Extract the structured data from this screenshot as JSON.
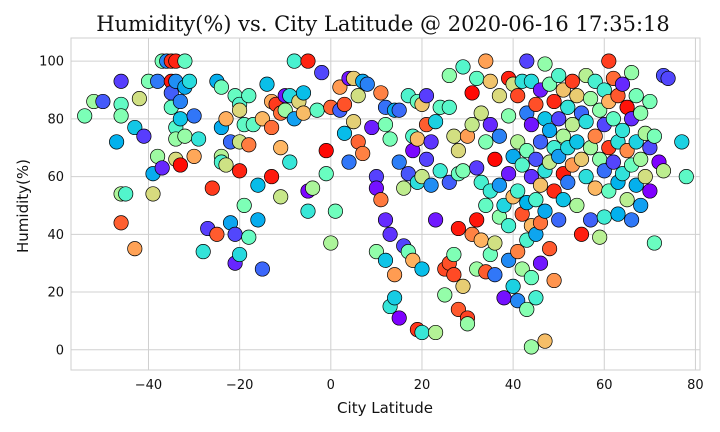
{
  "chart_data": {
    "type": "scatter",
    "title": "Humidity(%) vs. City Latitude @ 2020-06-16 17:35:18",
    "xlabel": "City Latitude",
    "ylabel": "Humidity(%)",
    "xlim": [
      -57,
      81
    ],
    "ylim": [
      -7,
      108
    ],
    "xticks": [
      -40,
      -20,
      0,
      20,
      40,
      60,
      80
    ],
    "yticks": [
      0,
      20,
      40,
      60,
      80,
      100
    ],
    "grid": true,
    "colormap": "rainbow",
    "marker_edge_color": "#000000",
    "points": [
      [
        -54,
        81
      ],
      [
        -52,
        86
      ],
      [
        -50,
        86
      ],
      [
        -47,
        72
      ],
      [
        -46,
        85
      ],
      [
        -46,
        81
      ],
      [
        -46,
        93
      ],
      [
        -46,
        44
      ],
      [
        -46,
        54
      ],
      [
        -45,
        54
      ],
      [
        -43,
        77
      ],
      [
        -43,
        35
      ],
      [
        -42,
        87
      ],
      [
        -41,
        74
      ],
      [
        -40,
        93
      ],
      [
        -39,
        61
      ],
      [
        -39,
        54
      ],
      [
        -38,
        93
      ],
      [
        -38,
        67
      ],
      [
        -37,
        100
      ],
      [
        -36,
        100
      ],
      [
        -37,
        63
      ],
      [
        -35,
        100
      ],
      [
        -35,
        93
      ],
      [
        -35,
        89
      ],
      [
        -35,
        84
      ],
      [
        -34,
        100
      ],
      [
        -34,
        93
      ],
      [
        -34,
        77
      ],
      [
        -34,
        73
      ],
      [
        -34,
        66
      ],
      [
        -33,
        80
      ],
      [
        -33,
        86
      ],
      [
        -33,
        64
      ],
      [
        -32,
        100
      ],
      [
        -32,
        91
      ],
      [
        -32,
        74
      ],
      [
        -31,
        93
      ],
      [
        -30,
        81
      ],
      [
        -30,
        67
      ],
      [
        -29,
        73
      ],
      [
        -28,
        34
      ],
      [
        -27,
        42
      ],
      [
        -26,
        56
      ],
      [
        -25,
        93
      ],
      [
        -25,
        40
      ],
      [
        -24,
        91
      ],
      [
        -24,
        77
      ],
      [
        -24,
        67
      ],
      [
        -24,
        65
      ],
      [
        -23,
        80
      ],
      [
        -23,
        64
      ],
      [
        -22,
        72
      ],
      [
        -22,
        44
      ],
      [
        -21,
        88
      ],
      [
        -21,
        40
      ],
      [
        -21,
        30
      ],
      [
        -20,
        85
      ],
      [
        -20,
        83
      ],
      [
        -20,
        72
      ],
      [
        -20,
        62
      ],
      [
        -20,
        33
      ],
      [
        -19,
        78
      ],
      [
        -19,
        50
      ],
      [
        -18,
        88
      ],
      [
        -18,
        71
      ],
      [
        -18,
        39
      ],
      [
        -17,
        78
      ],
      [
        -16,
        57
      ],
      [
        -16,
        45
      ],
      [
        -15,
        80
      ],
      [
        -15,
        28
      ],
      [
        -14,
        92
      ],
      [
        -13,
        86
      ],
      [
        -13,
        77
      ],
      [
        -13,
        60
      ],
      [
        -12,
        85
      ],
      [
        -11,
        82
      ],
      [
        -11,
        70
      ],
      [
        -11,
        53
      ],
      [
        -10,
        83
      ],
      [
        -10,
        88
      ],
      [
        -9,
        88
      ],
      [
        -9,
        65
      ],
      [
        -8,
        80
      ],
      [
        -8,
        100
      ],
      [
        -7,
        86
      ],
      [
        -6,
        82
      ],
      [
        -6,
        89
      ],
      [
        -5,
        100
      ],
      [
        -5,
        55
      ],
      [
        -5,
        48
      ],
      [
        -4,
        56
      ],
      [
        -3,
        83
      ],
      [
        -2,
        96
      ],
      [
        -1,
        69
      ],
      [
        -1,
        61
      ],
      [
        0,
        84
      ],
      [
        0,
        37
      ],
      [
        1,
        48
      ],
      [
        2,
        83
      ],
      [
        2,
        91
      ],
      [
        3,
        85
      ],
      [
        3,
        75
      ],
      [
        4,
        94
      ],
      [
        4,
        65
      ],
      [
        5,
        94
      ],
      [
        5,
        79
      ],
      [
        6,
        88
      ],
      [
        6,
        72
      ],
      [
        7,
        93
      ],
      [
        7,
        68
      ],
      [
        8,
        92
      ],
      [
        9,
        77
      ],
      [
        10,
        60
      ],
      [
        10,
        56
      ],
      [
        10,
        34
      ],
      [
        11,
        89
      ],
      [
        11,
        52
      ],
      [
        12,
        84
      ],
      [
        12,
        78
      ],
      [
        12,
        45
      ],
      [
        12,
        31
      ],
      [
        13,
        73
      ],
      [
        13,
        40
      ],
      [
        13,
        15
      ],
      [
        14,
        83
      ],
      [
        14,
        18
      ],
      [
        14,
        26
      ],
      [
        15,
        83
      ],
      [
        15,
        65
      ],
      [
        15,
        11
      ],
      [
        16,
        56
      ],
      [
        16,
        36
      ],
      [
        17,
        88
      ],
      [
        17,
        61
      ],
      [
        17,
        34
      ],
      [
        18,
        74
      ],
      [
        18,
        69
      ],
      [
        18,
        31
      ],
      [
        19,
        86
      ],
      [
        19,
        73
      ],
      [
        19,
        58
      ],
      [
        19,
        7
      ],
      [
        20,
        85
      ],
      [
        20,
        60
      ],
      [
        20,
        28
      ],
      [
        20,
        6
      ],
      [
        21,
        88
      ],
      [
        21,
        78
      ],
      [
        21,
        66
      ],
      [
        22,
        72
      ],
      [
        22,
        57
      ],
      [
        23,
        79
      ],
      [
        23,
        45
      ],
      [
        23,
        6
      ],
      [
        24,
        84
      ],
      [
        24,
        62
      ],
      [
        25,
        19
      ],
      [
        25,
        28
      ],
      [
        26,
        95
      ],
      [
        26,
        84
      ],
      [
        26,
        58
      ],
      [
        26,
        30
      ],
      [
        27,
        74
      ],
      [
        27,
        33
      ],
      [
        27,
        26
      ],
      [
        28,
        69
      ],
      [
        28,
        61
      ],
      [
        28,
        42
      ],
      [
        28,
        14
      ],
      [
        29,
        98
      ],
      [
        29,
        62
      ],
      [
        29,
        22
      ],
      [
        30,
        74
      ],
      [
        30,
        11
      ],
      [
        30,
        9
      ],
      [
        31,
        89
      ],
      [
        31,
        78
      ],
      [
        31,
        40
      ],
      [
        32,
        94
      ],
      [
        32,
        63
      ],
      [
        32,
        45
      ],
      [
        32,
        28
      ],
      [
        33,
        82
      ],
      [
        33,
        58
      ],
      [
        33,
        38
      ],
      [
        34,
        100
      ],
      [
        34,
        72
      ],
      [
        34,
        50
      ],
      [
        34,
        27
      ],
      [
        35,
        93
      ],
      [
        35,
        78
      ],
      [
        35,
        55
      ],
      [
        35,
        33
      ],
      [
        36,
        66
      ],
      [
        36,
        37
      ],
      [
        36,
        26
      ],
      [
        37,
        88
      ],
      [
        37,
        74
      ],
      [
        37,
        57
      ],
      [
        37,
        46
      ],
      [
        38,
        50
      ],
      [
        38,
        18
      ],
      [
        39,
        94
      ],
      [
        39,
        81
      ],
      [
        39,
        61
      ],
      [
        39,
        43
      ],
      [
        39,
        31
      ],
      [
        40,
        92
      ],
      [
        40,
        67
      ],
      [
        40,
        53
      ],
      [
        40,
        22
      ],
      [
        41,
        88
      ],
      [
        41,
        72
      ],
      [
        41,
        55
      ],
      [
        41,
        34
      ],
      [
        41,
        17
      ],
      [
        42,
        93
      ],
      [
        42,
        64
      ],
      [
        42,
        47
      ],
      [
        42,
        28
      ],
      [
        43,
        100
      ],
      [
        43,
        82
      ],
      [
        43,
        69
      ],
      [
        43,
        51
      ],
      [
        43,
        38
      ],
      [
        43,
        14
      ],
      [
        44,
        93
      ],
      [
        44,
        78
      ],
      [
        44,
        60
      ],
      [
        44,
        43
      ],
      [
        44,
        25
      ],
      [
        44,
        1
      ],
      [
        45,
        85
      ],
      [
        45,
        66
      ],
      [
        45,
        52
      ],
      [
        45,
        40
      ],
      [
        45,
        18
      ],
      [
        46,
        90
      ],
      [
        46,
        72
      ],
      [
        46,
        57
      ],
      [
        46,
        44
      ],
      [
        46,
        30
      ],
      [
        47,
        99
      ],
      [
        47,
        80
      ],
      [
        47,
        62
      ],
      [
        47,
        48
      ],
      [
        47,
        3
      ],
      [
        48,
        92
      ],
      [
        48,
        76
      ],
      [
        48,
        65
      ],
      [
        48,
        35
      ],
      [
        49,
        86
      ],
      [
        49,
        70
      ],
      [
        49,
        55
      ],
      [
        49,
        24
      ],
      [
        50,
        95
      ],
      [
        50,
        80
      ],
      [
        50,
        67
      ],
      [
        50,
        45
      ],
      [
        51,
        90
      ],
      [
        51,
        74
      ],
      [
        51,
        61
      ],
      [
        51,
        52
      ],
      [
        52,
        84
      ],
      [
        52,
        70
      ],
      [
        52,
        58
      ],
      [
        53,
        93
      ],
      [
        53,
        78
      ],
      [
        53,
        64
      ],
      [
        54,
        88
      ],
      [
        54,
        72
      ],
      [
        54,
        50
      ],
      [
        55,
        82
      ],
      [
        55,
        66
      ],
      [
        55,
        40
      ],
      [
        56,
        95
      ],
      [
        56,
        79
      ],
      [
        56,
        60
      ],
      [
        57,
        87
      ],
      [
        57,
        70
      ],
      [
        57,
        45
      ],
      [
        58,
        93
      ],
      [
        58,
        74
      ],
      [
        58,
        56
      ],
      [
        59,
        83
      ],
      [
        59,
        66
      ],
      [
        59,
        39
      ],
      [
        60,
        90
      ],
      [
        60,
        78
      ],
      [
        60,
        62
      ],
      [
        60,
        46
      ],
      [
        61,
        100
      ],
      [
        61,
        86
      ],
      [
        61,
        70
      ],
      [
        61,
        55
      ],
      [
        62,
        94
      ],
      [
        62,
        80
      ],
      [
        62,
        65
      ],
      [
        63,
        88
      ],
      [
        63,
        72
      ],
      [
        63,
        58
      ],
      [
        63,
        47
      ],
      [
        64,
        92
      ],
      [
        64,
        76
      ],
      [
        64,
        61
      ],
      [
        65,
        84
      ],
      [
        65,
        69
      ],
      [
        65,
        52
      ],
      [
        66,
        96
      ],
      [
        66,
        80
      ],
      [
        66,
        64
      ],
      [
        66,
        45
      ],
      [
        67,
        88
      ],
      [
        67,
        72
      ],
      [
        67,
        57
      ],
      [
        68,
        82
      ],
      [
        68,
        66
      ],
      [
        68,
        50
      ],
      [
        69,
        75
      ],
      [
        69,
        60
      ],
      [
        70,
        86
      ],
      [
        70,
        70
      ],
      [
        70,
        55
      ],
      [
        71,
        74
      ],
      [
        71,
        37
      ],
      [
        72,
        65
      ],
      [
        73,
        62
      ],
      [
        73,
        95
      ],
      [
        74,
        94
      ],
      [
        77,
        72
      ],
      [
        78,
        60
      ]
    ]
  }
}
